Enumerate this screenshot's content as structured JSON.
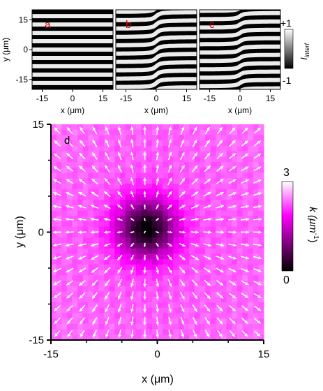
{
  "chart_data": [
    {
      "type": "heatmap",
      "panel_label": "a",
      "xlabel": "x (μm)",
      "ylabel": "y (μm)",
      "xlim": [
        -20,
        20
      ],
      "ylim": [
        -20,
        20
      ],
      "xticks": [
        "-15",
        "0",
        "15"
      ],
      "yticks": [
        "15",
        "0",
        "-15"
      ],
      "fringe_period_um": 4.2,
      "fringe_bend_amplitude_um": 0.0,
      "colormap": [
        "#000000",
        "#ffffff"
      ]
    },
    {
      "type": "heatmap",
      "panel_label": "b",
      "xlabel": "x (μm)",
      "xlim": [
        -20,
        20
      ],
      "ylim": [
        -20,
        20
      ],
      "xticks": [
        "-15",
        "0",
        "15"
      ],
      "fringe_period_um": 4.2,
      "fringe_bend_amplitude_um": 2.1,
      "colormap": [
        "#000000",
        "#ffffff"
      ]
    },
    {
      "type": "heatmap",
      "panel_label": "c",
      "xlabel": "x (μm)",
      "xlim": [
        -20,
        20
      ],
      "ylim": [
        -20,
        20
      ],
      "xticks": [
        "-15",
        "0",
        "15"
      ],
      "fringe_period_um": 4.2,
      "fringe_bend_amplitude_um": 1.6,
      "colormap": [
        "#000000",
        "#ffffff"
      ]
    },
    {
      "type": "heatmap",
      "panel_label": "d",
      "xlabel": "x (μm)",
      "ylabel": "y (μm)",
      "xlim": [
        -15,
        15
      ],
      "ylim": [
        -15,
        15
      ],
      "xticks": [
        "-15",
        "0",
        "15"
      ],
      "yticks": [
        "15",
        "0",
        "-15"
      ],
      "field": "k magnitude with radial outward wave-vector arrows",
      "core_center_um": [
        -1.5,
        0.5
      ],
      "core_radius_um": 4,
      "background_k": 2.2,
      "arrow_grid_count": 17,
      "colormap": [
        "#000000",
        "#ff00ff",
        "#ffffff"
      ]
    }
  ],
  "colorbars": {
    "interference": {
      "label_main": "I",
      "label_sub": "interf",
      "max_label": "+1",
      "min_label": "-1"
    },
    "k": {
      "label": "k (μm",
      "label_sup": "-1",
      "label_close": ")",
      "max_label": "3",
      "min_label": "0"
    }
  },
  "colors": {
    "label_red": "#cc0000",
    "magenta": "#ff00ff"
  }
}
